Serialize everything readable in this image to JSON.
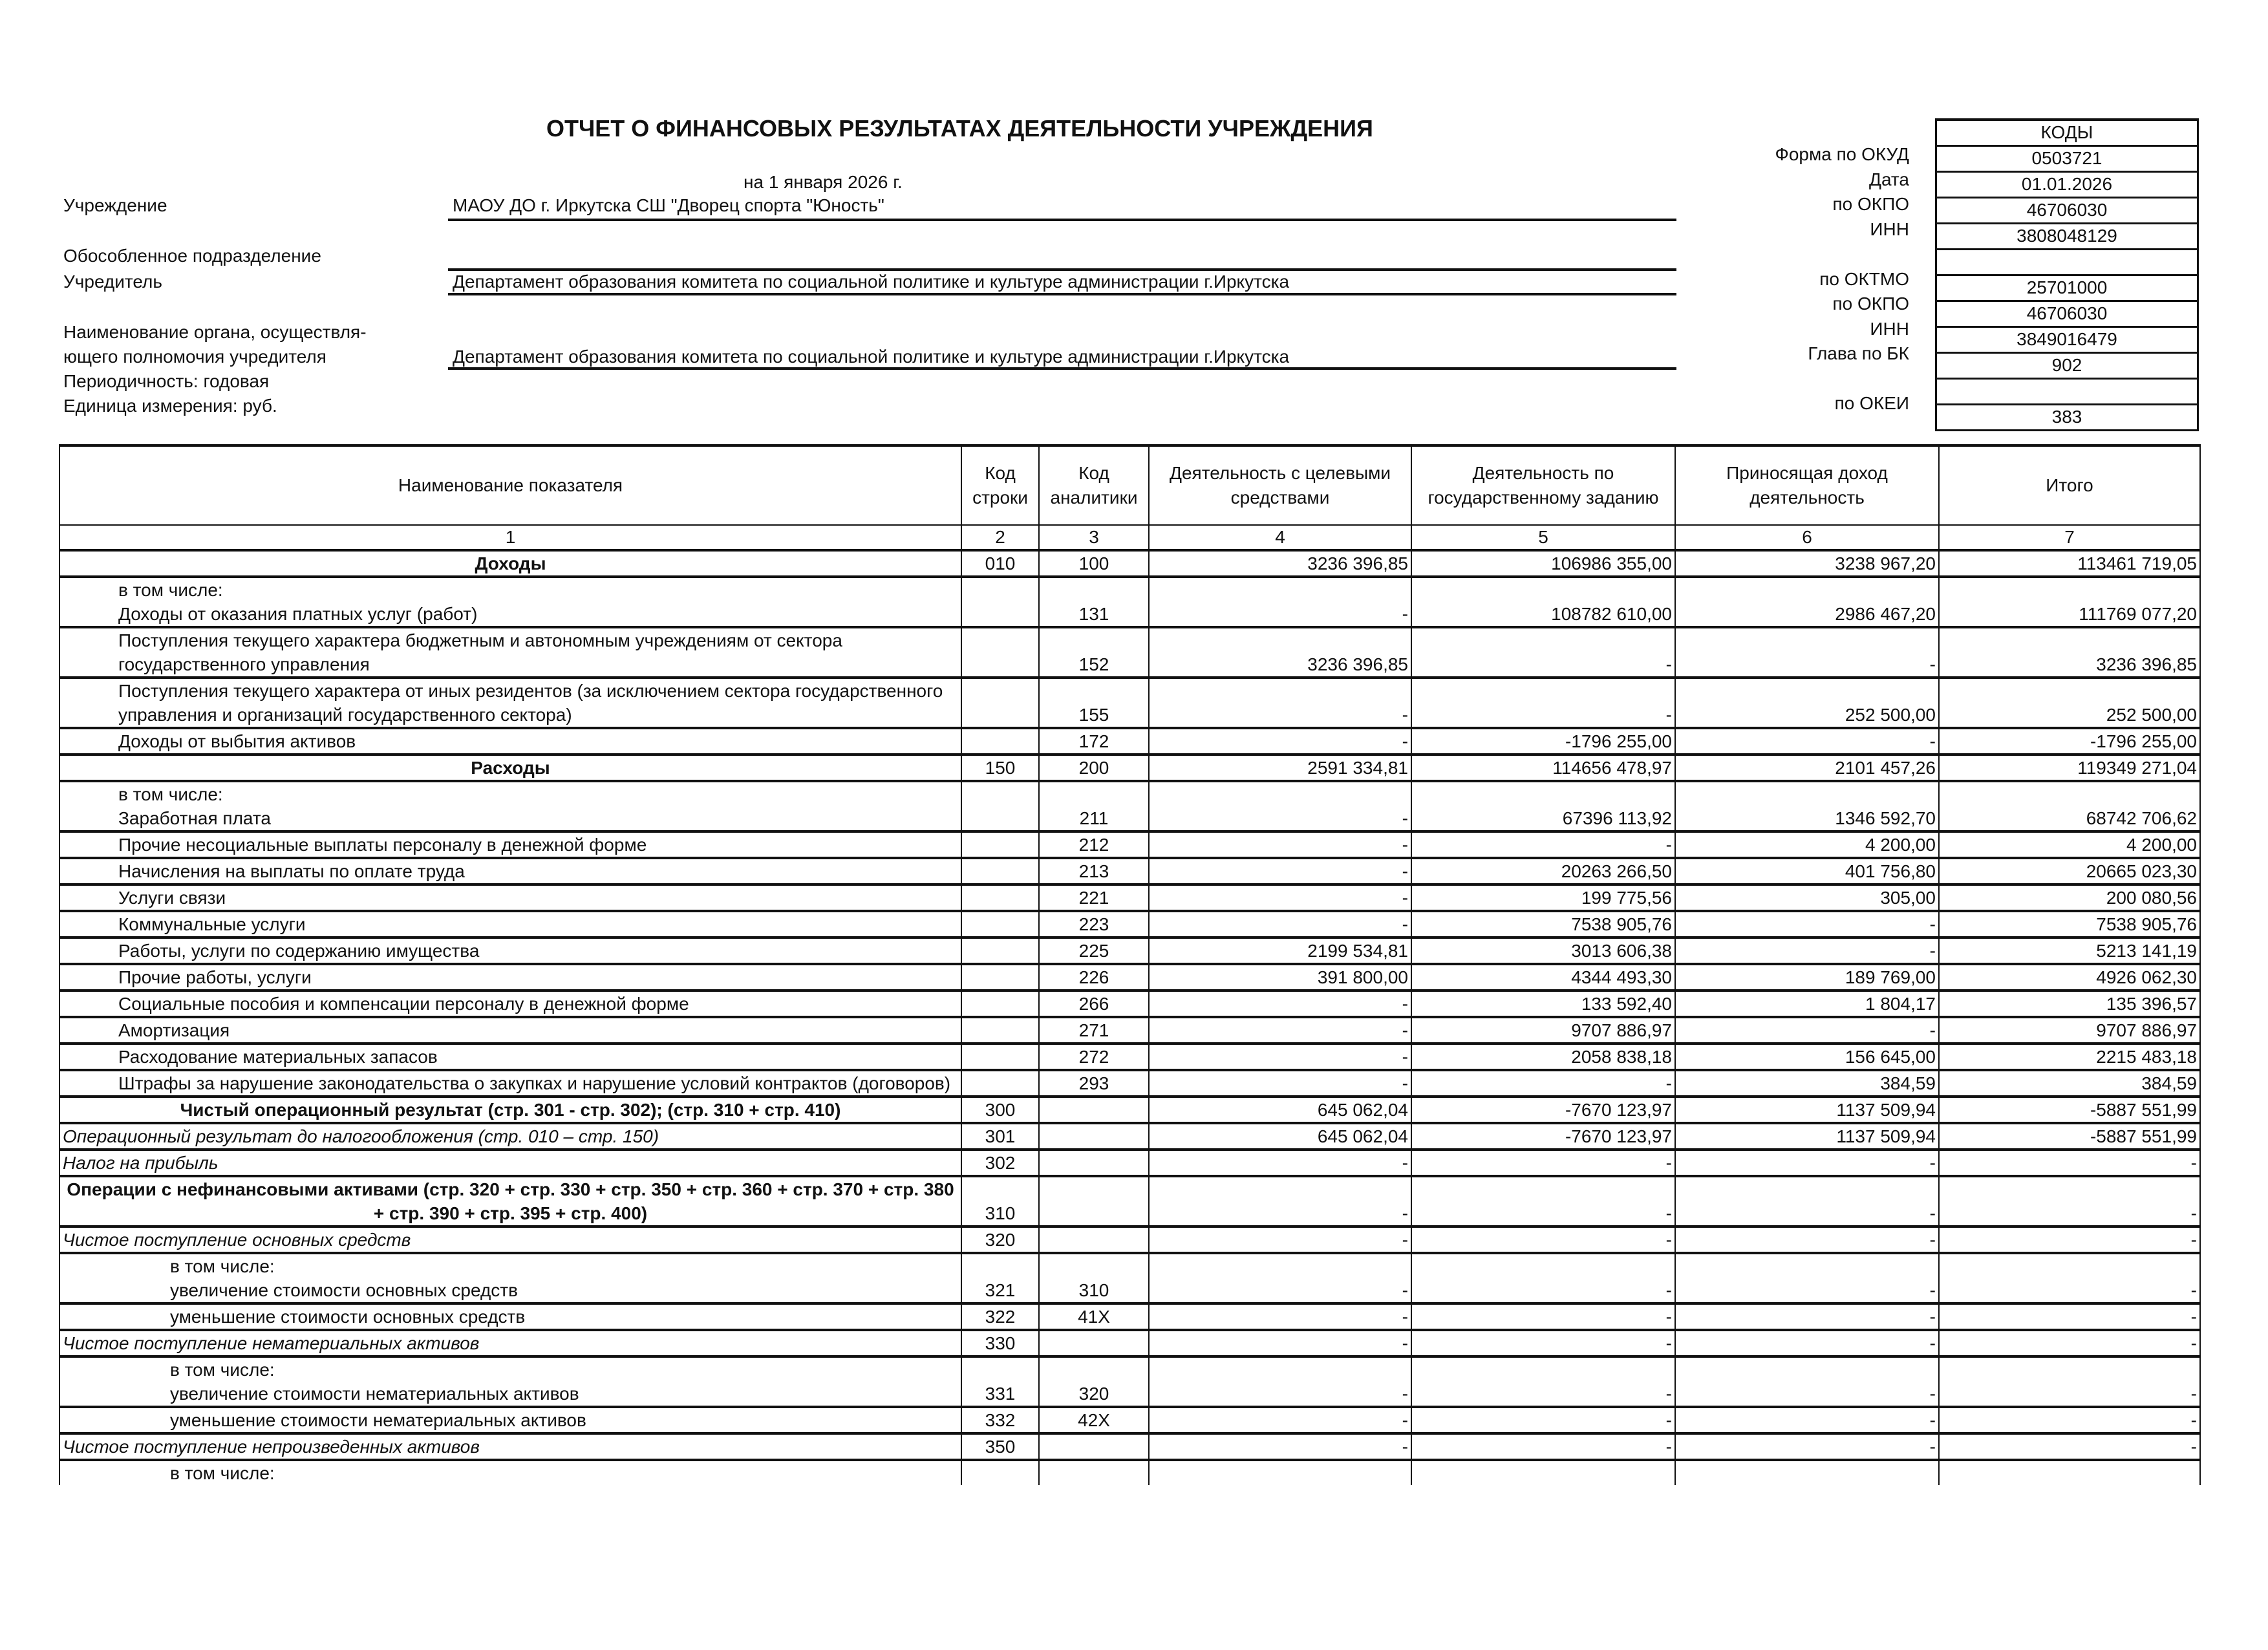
{
  "header": {
    "title": "ОТЧЕТ О ФИНАНСОВЫХ РЕЗУЛЬТАТАХ ДЕЯТЕЛЬНОСТИ УЧРЕЖДЕНИЯ",
    "date_line": "на 1 января 2026 г.",
    "institution_label": "Учреждение",
    "institution": "МАОУ ДО г. Иркутска СШ \"Дворец спорта \"Юность\"",
    "subdivision_label": "Обособленное подразделение",
    "founder_label": "Учредитель",
    "founder": "Департамент образования комитета по социальной политике и культуре администрации г.Иркутска",
    "authority_label_1": "Наименование органа, осуществля-",
    "authority_label_2": "ющего полномочия учредителя",
    "authority": "Департамент образования комитета по социальной политике и культуре администрации г.Иркутска",
    "periodicity": "Периодичность: годовая",
    "unit": "Единица измерения:   руб."
  },
  "codes": {
    "heading": "КОДЫ",
    "items": [
      {
        "label": "Форма по ОКУД",
        "value": "0503721"
      },
      {
        "label": "Дата",
        "value": "01.01.2026"
      },
      {
        "label": "по ОКПО",
        "value": "46706030"
      },
      {
        "label": "ИНН",
        "value": "3808048129"
      },
      {
        "label": "",
        "value": ""
      },
      {
        "label": "по ОКТМО",
        "value": "25701000"
      },
      {
        "label": "по ОКПО",
        "value": "46706030"
      },
      {
        "label": "ИНН",
        "value": "3849016479"
      },
      {
        "label": "Глава по БК",
        "value": "902"
      },
      {
        "label": "",
        "value": ""
      },
      {
        "label": "по ОКЕИ",
        "value": "383"
      }
    ]
  },
  "table": {
    "columns": [
      "Наименование показателя",
      "Код строки",
      "Код аналитики",
      "Деятельность с целевыми средствами",
      "Деятельность по государственному заданию",
      "Приносящая доход деятельность",
      "Итого"
    ],
    "column_numbers": [
      "1",
      "2",
      "3",
      "4",
      "5",
      "6",
      "7"
    ],
    "rows": [
      {
        "style": "b",
        "name": "Доходы",
        "code": "010",
        "an": "100",
        "c4": "3236 396,85",
        "c5": "106986 355,00",
        "c6": "3238 967,20",
        "c7": "113461 719,05"
      },
      {
        "style": "ind1 vt",
        "name": "в том числе:",
        "code": "",
        "an": "",
        "c4": "",
        "c5": "",
        "c6": "",
        "c7": ""
      },
      {
        "style": "ind1",
        "name": "Доходы от оказания платных услуг (работ)",
        "code": "",
        "an": "131",
        "c4": "-",
        "c5": "108782 610,00",
        "c6": "2986 467,20",
        "c7": "111769 077,20"
      },
      {
        "style": "ind1",
        "name": "Поступления текущего характера бюджетным и автономным учреждениям от сектора государственного управления",
        "code": "",
        "an": "152",
        "c4": "3236 396,85",
        "c5": "-",
        "c6": "-",
        "c7": "3236 396,85"
      },
      {
        "style": "ind1",
        "name": "Поступления текущего характера от иных резидентов (за исключением сектора государственного управления и организаций государственного сектора)",
        "code": "",
        "an": "155",
        "c4": "-",
        "c5": "-",
        "c6": "252 500,00",
        "c7": "252 500,00"
      },
      {
        "style": "ind1",
        "name": "Доходы от выбытия активов",
        "code": "",
        "an": "172",
        "c4": "-",
        "c5": "-1796 255,00",
        "c6": "-",
        "c7": "-1796 255,00"
      },
      {
        "style": "b",
        "name": "Расходы",
        "code": "150",
        "an": "200",
        "c4": "2591 334,81",
        "c5": "114656 478,97",
        "c6": "2101 457,26",
        "c7": "119349 271,04"
      },
      {
        "style": "ind1 vt",
        "name": "в том числе:",
        "code": "",
        "an": "",
        "c4": "",
        "c5": "",
        "c6": "",
        "c7": ""
      },
      {
        "style": "ind1",
        "name": "Заработная плата",
        "code": "",
        "an": "211",
        "c4": "-",
        "c5": "67396 113,92",
        "c6": "1346 592,70",
        "c7": "68742 706,62"
      },
      {
        "style": "ind1",
        "name": "Прочие несоциальные выплаты персоналу в денежной форме",
        "code": "",
        "an": "212",
        "c4": "-",
        "c5": "-",
        "c6": "4 200,00",
        "c7": "4 200,00"
      },
      {
        "style": "ind1",
        "name": "Начисления на выплаты по оплате труда",
        "code": "",
        "an": "213",
        "c4": "-",
        "c5": "20263 266,50",
        "c6": "401 756,80",
        "c7": "20665 023,30"
      },
      {
        "style": "ind1",
        "name": "Услуги связи",
        "code": "",
        "an": "221",
        "c4": "-",
        "c5": "199 775,56",
        "c6": "305,00",
        "c7": "200 080,56"
      },
      {
        "style": "ind1",
        "name": "Коммунальные услуги",
        "code": "",
        "an": "223",
        "c4": "-",
        "c5": "7538 905,76",
        "c6": "-",
        "c7": "7538 905,76"
      },
      {
        "style": "ind1",
        "name": "Работы, услуги по содержанию имущества",
        "code": "",
        "an": "225",
        "c4": "2199 534,81",
        "c5": "3013 606,38",
        "c6": "-",
        "c7": "5213 141,19"
      },
      {
        "style": "ind1",
        "name": "Прочие работы, услуги",
        "code": "",
        "an": "226",
        "c4": "391 800,00",
        "c5": "4344 493,30",
        "c6": "189 769,00",
        "c7": "4926 062,30"
      },
      {
        "style": "ind1",
        "name": "Социальные пособия и компенсации персоналу в денежной форме",
        "code": "",
        "an": "266",
        "c4": "-",
        "c5": "133 592,40",
        "c6": "1 804,17",
        "c7": "135 396,57"
      },
      {
        "style": "ind1",
        "name": "Амортизация",
        "code": "",
        "an": "271",
        "c4": "-",
        "c5": "9707 886,97",
        "c6": "-",
        "c7": "9707 886,97"
      },
      {
        "style": "ind1",
        "name": "Расходование материальных запасов",
        "code": "",
        "an": "272",
        "c4": "-",
        "c5": "2058 838,18",
        "c6": "156 645,00",
        "c7": "2215 483,18"
      },
      {
        "style": "ind1",
        "name": "Штрафы за нарушение законодательства о закупках и нарушение условий контрактов (договоров)",
        "code": "",
        "an": "293",
        "c4": "-",
        "c5": "-",
        "c6": "384,59",
        "c7": "384,59"
      },
      {
        "style": "b",
        "name": "Чистый операционный результат (стр. 301 - стр. 302); (стр. 310 + стр. 410)",
        "code": "300",
        "an": "",
        "c4": "645 062,04",
        "c5": "-7670 123,97",
        "c6": "1137 509,94",
        "c7": "-5887 551,99"
      },
      {
        "style": "i",
        "name": "Операционный результат до налогообложения (стр. 010 – стр. 150)",
        "code": "301",
        "an": "",
        "c4": "645 062,04",
        "c5": "-7670 123,97",
        "c6": "1137 509,94",
        "c7": "-5887 551,99"
      },
      {
        "style": "i",
        "name": "Налог на прибыль",
        "code": "302",
        "an": "",
        "c4": "-",
        "c5": "-",
        "c6": "-",
        "c7": "-"
      },
      {
        "style": "b",
        "name": "Операции с нефинансовыми активами (стр. 320 + стр. 330 + стр. 350 + стр. 360 + стр. 370 + стр. 380 + стр. 390 + стр. 395 + стр. 400)",
        "code": "310",
        "an": "",
        "c4": "-",
        "c5": "-",
        "c6": "-",
        "c7": "-"
      },
      {
        "style": "i",
        "name": "Чистое поступление основных средств",
        "code": "320",
        "an": "",
        "c4": "-",
        "c5": "-",
        "c6": "-",
        "c7": "-"
      },
      {
        "style": "ind2 vt",
        "name": "в том числе:",
        "code": "",
        "an": "",
        "c4": "",
        "c5": "",
        "c6": "",
        "c7": ""
      },
      {
        "style": "ind2",
        "name": "увеличение стоимости основных средств",
        "code": "321",
        "an": "310",
        "c4": "-",
        "c5": "-",
        "c6": "-",
        "c7": "-"
      },
      {
        "style": "ind2",
        "name": "уменьшение стоимости основных средств",
        "code": "322",
        "an": "41X",
        "c4": "-",
        "c5": "-",
        "c6": "-",
        "c7": "-"
      },
      {
        "style": "i",
        "name": "Чистое поступление нематериальных активов",
        "code": "330",
        "an": "",
        "c4": "-",
        "c5": "-",
        "c6": "-",
        "c7": "-"
      },
      {
        "style": "ind2 vt",
        "name": "в том числе:",
        "code": "",
        "an": "",
        "c4": "",
        "c5": "",
        "c6": "",
        "c7": ""
      },
      {
        "style": "ind2",
        "name": "увеличение стоимости нематериальных активов",
        "code": "331",
        "an": "320",
        "c4": "-",
        "c5": "-",
        "c6": "-",
        "c7": "-"
      },
      {
        "style": "ind2",
        "name": "уменьшение стоимости нематериальных активов",
        "code": "332",
        "an": "42X",
        "c4": "-",
        "c5": "-",
        "c6": "-",
        "c7": "-"
      },
      {
        "style": "i",
        "name": "Чистое поступление непроизведенных активов",
        "code": "350",
        "an": "",
        "c4": "-",
        "c5": "-",
        "c6": "-",
        "c7": "-"
      },
      {
        "style": "ind2 vt last",
        "name": "в том числе:",
        "code": "",
        "an": "",
        "c4": "",
        "c5": "",
        "c6": "",
        "c7": ""
      }
    ]
  }
}
